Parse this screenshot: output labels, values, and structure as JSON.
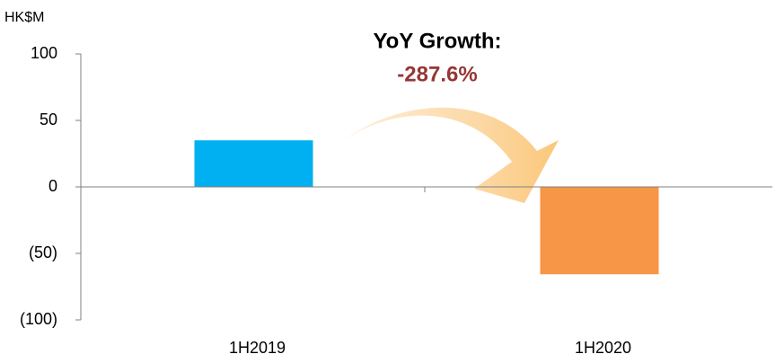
{
  "chart_data": {
    "type": "bar",
    "unit_label": "HK$M",
    "annotation_title": "YoY Growth:",
    "annotation_value": "-287.6%",
    "categories": [
      "1H2019",
      "1H2020"
    ],
    "values": [
      35,
      -65.7
    ],
    "colors": [
      "#00b0f0",
      "#f79646"
    ],
    "ylim": [
      -100,
      100
    ],
    "yticks": [
      {
        "value": -100,
        "label": "(100)"
      },
      {
        "value": -50,
        "label": "(50)"
      },
      0,
      50,
      100
    ],
    "grid": false
  }
}
